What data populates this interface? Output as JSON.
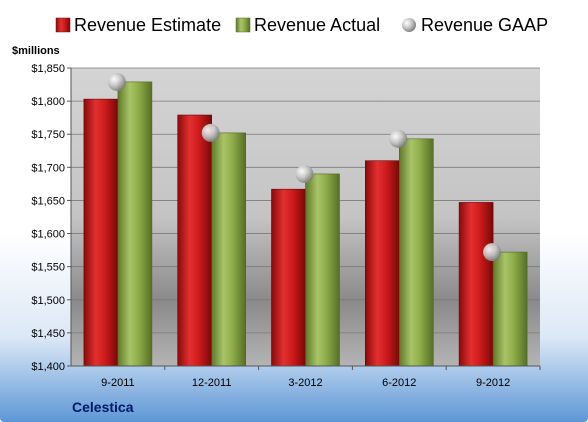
{
  "chart_data": {
    "type": "bar",
    "categories": [
      "9-2011",
      "12-2011",
      "3-2012",
      "6-2012",
      "9-2012"
    ],
    "series": [
      {
        "name": "Revenue Estimate",
        "values": [
          1803,
          1779,
          1667,
          1710,
          1647
        ]
      },
      {
        "name": "Revenue Actual",
        "values": [
          1829,
          1752,
          1690,
          1743,
          1572
        ]
      },
      {
        "name": "Revenue GAAP",
        "values": [
          1829,
          1752,
          1690,
          1743,
          1572
        ],
        "style": "marker"
      }
    ],
    "ylabel": "$millions",
    "ylim": [
      1400,
      1850
    ],
    "yticks": [
      1400,
      1450,
      1500,
      1550,
      1600,
      1650,
      1700,
      1750,
      1800,
      1850
    ],
    "ytick_labels": [
      "$1,400",
      "$1,450",
      "$1,500",
      "$1,550",
      "$1,600",
      "$1,650",
      "$1,700",
      "$1,750",
      "$1,800",
      "$1,850"
    ],
    "grid": true,
    "legend_position": "top",
    "company": "Celestica",
    "colors": {
      "estimate": "#d01c1c",
      "actual": "#8fae4a",
      "gaap": "#b8b8b8"
    }
  }
}
